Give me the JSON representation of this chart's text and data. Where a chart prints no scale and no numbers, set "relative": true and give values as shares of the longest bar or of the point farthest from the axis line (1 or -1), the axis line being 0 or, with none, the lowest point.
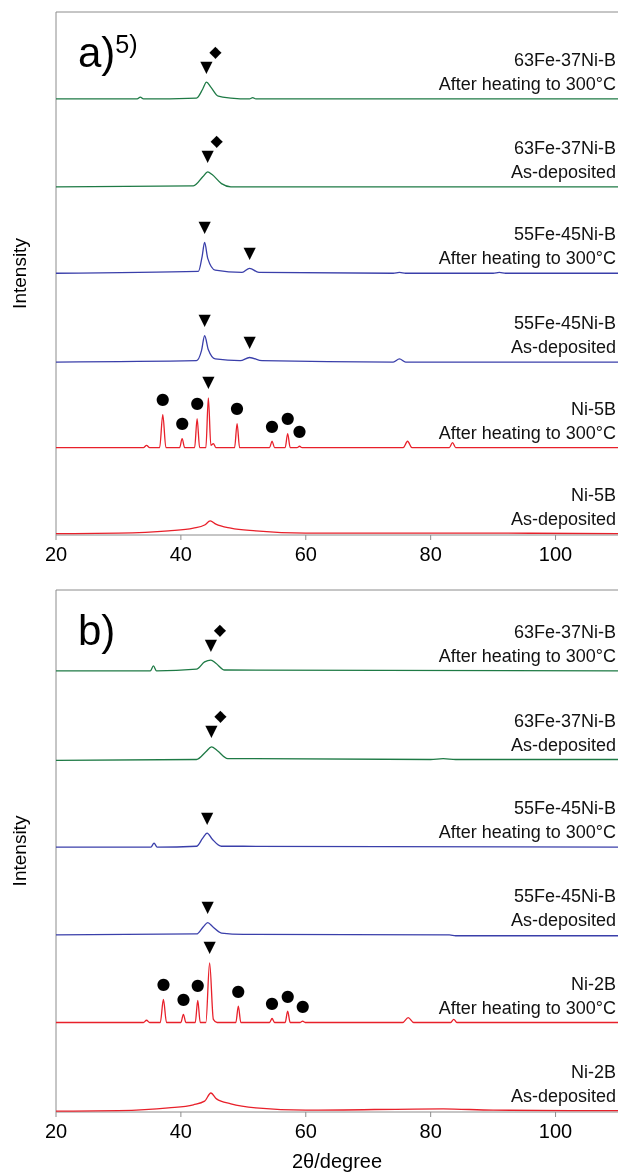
{
  "chart_data": [
    {
      "type": "line",
      "title": "a)$^{5)}$",
      "ylabel": "Intensity",
      "relative": true,
      "xlim": [
        20,
        110
      ],
      "xticks": [
        20,
        40,
        60,
        80,
        100
      ],
      "marker": "none",
      "line_style": "solid",
      "series": [
        {
          "name": "Ni-5B\nAs-deposited",
          "color": "#e8202a",
          "x": [
            20,
            30,
            38,
            42,
            43.8,
            44.7,
            45.6,
            48,
            52,
            60,
            80,
            90,
            110
          ],
          "values": [
            0.003,
            0.004,
            0.009,
            0.015,
            0.022,
            0.031,
            0.024,
            0.015,
            0.009,
            0.004,
            0.004,
            0.004,
            0.003
          ]
        },
        {
          "name": "Ni-5B\nAfter heating to 300°C",
          "color": "#e8202a",
          "x": [
            20,
            34,
            34.5,
            35,
            36.6,
            37.1,
            37.6,
            39.8,
            40.2,
            40.6,
            42.2,
            42.6,
            43.0,
            44.0,
            44.4,
            44.8,
            45.2,
            45.6,
            48.6,
            49.0,
            49.4,
            54.2,
            54.6,
            55.0,
            56.7,
            57.1,
            57.5,
            58.6,
            59.0,
            59.4,
            75.6,
            76.3,
            77.0,
            83.0,
            83.5,
            84.0,
            110
          ],
          "values": [
            0.193,
            0.193,
            0.198,
            0.193,
            0.193,
            0.266,
            0.193,
            0.193,
            0.213,
            0.193,
            0.193,
            0.257,
            0.193,
            0.193,
            0.303,
            0.198,
            0.202,
            0.193,
            0.193,
            0.246,
            0.193,
            0.193,
            0.207,
            0.193,
            0.193,
            0.224,
            0.193,
            0.193,
            0.196,
            0.193,
            0.193,
            0.207,
            0.193,
            0.193,
            0.204,
            0.193,
            0.193
          ]
        },
        {
          "name": "55Fe-45Ni-B\nAs-deposited",
          "color": "#3a3faa",
          "x": [
            20,
            42.5,
            43.3,
            43.8,
            44.4,
            45.5,
            49.5,
            51,
            53,
            74,
            75,
            76,
            110
          ],
          "values": [
            0.382,
            0.385,
            0.407,
            0.44,
            0.409,
            0.389,
            0.385,
            0.392,
            0.385,
            0.382,
            0.389,
            0.382,
            0.382
          ]
        },
        {
          "name": "55Fe-45Ni-B\nAfter heating to 300°C",
          "color": "#3a3faa",
          "x": [
            20,
            42.8,
            43.4,
            43.8,
            44.3,
            45.5,
            49.8,
            51,
            52.5,
            74,
            75,
            76,
            90,
            91,
            92,
            110
          ],
          "values": [
            0.578,
            0.582,
            0.615,
            0.646,
            0.611,
            0.585,
            0.58,
            0.589,
            0.58,
            0.578,
            0.58,
            0.578,
            0.578,
            0.58,
            0.578,
            0.578
          ]
        },
        {
          "name": "63Fe-37Ni-B\nAs-deposited",
          "color": "#1e7a45",
          "x": [
            20,
            42,
            43.5,
            44.3,
            45,
            46.5,
            48,
            110
          ],
          "values": [
            0.769,
            0.771,
            0.791,
            0.802,
            0.796,
            0.776,
            0.769,
            0.769
          ]
        },
        {
          "name": "63Fe-37Ni-B\nAfter heating to 300°C",
          "color": "#1e7a45",
          "x": [
            20,
            33,
            33.5,
            34,
            42.5,
            43.5,
            44.1,
            44.8,
            46,
            48,
            51,
            51.5,
            52,
            110
          ],
          "values": [
            0.963,
            0.963,
            0.967,
            0.963,
            0.965,
            0.985,
            1,
            0.989,
            0.969,
            0.965,
            0.963,
            0.966,
            0.963,
            0.963
          ]
        }
      ],
      "annotations": [
        {
          "text": "▼",
          "x": 44.1,
          "y": 1
        },
        {
          "text": "◆",
          "x": 44.1,
          "y": 1
        },
        {
          "text": "▼",
          "x": 44.3,
          "y": 0.802
        },
        {
          "text": "◆",
          "x": 44.3,
          "y": 0.802
        },
        {
          "text": "▼",
          "x": 43.8,
          "y": 0.646
        },
        {
          "text": "▼",
          "x": 51,
          "y": 0.589
        },
        {
          "text": "▼",
          "x": 43.8,
          "y": 0.44
        },
        {
          "text": "▼",
          "x": 51,
          "y": 0.392
        },
        {
          "text": "▼",
          "x": 44.4,
          "y": 0.303
        },
        {
          "text": "●",
          "x": 37.1,
          "y": 0.266
        },
        {
          "text": "●",
          "x": 40.2,
          "y": 0.213
        },
        {
          "text": "●",
          "x": 42.6,
          "y": 0.257
        },
        {
          "text": "●",
          "x": 49.0,
          "y": 0.246
        },
        {
          "text": "●",
          "x": 54.6,
          "y": 0.207
        },
        {
          "text": "●",
          "x": 57.1,
          "y": 0.224
        },
        {
          "text": "●",
          "x": 59.0,
          "y": 0.196
        }
      ]
    },
    {
      "type": "line",
      "title": "b)",
      "ylabel": "Intensity",
      "xlabel": "2θ/degree",
      "relative": true,
      "xlim": [
        20,
        110
      ],
      "xticks": [
        20,
        40,
        60,
        80,
        100
      ],
      "marker": "none",
      "line_style": "solid",
      "series": [
        {
          "name": "Ni-2B\nAs-deposited",
          "color": "#e8202a",
          "x": [
            20,
            30,
            38,
            42,
            43.8,
            44.8,
            45.7,
            48,
            52,
            60,
            82,
            90,
            110
          ],
          "values": [
            0.002,
            0.003,
            0.009,
            0.016,
            0.024,
            0.042,
            0.029,
            0.018,
            0.009,
            0.004,
            0.007,
            0.004,
            0.003
          ]
        },
        {
          "name": "Ni-2B\nAfter heating to 300°C",
          "color": "#e8202a",
          "x": [
            20,
            34,
            34.5,
            35,
            36.7,
            37.2,
            37.7,
            40.0,
            40.4,
            40.8,
            42.3,
            42.7,
            43.1,
            44.0,
            44.6,
            45.2,
            45.8,
            48.8,
            49.2,
            49.6,
            54.2,
            54.6,
            55.0,
            56.7,
            57.1,
            57.5,
            59.1,
            59.5,
            59.9,
            75.5,
            76.4,
            77.3,
            83.2,
            83.7,
            84.2,
            110
          ],
          "values": [
            0.198,
            0.198,
            0.203,
            0.198,
            0.198,
            0.249,
            0.198,
            0.198,
            0.216,
            0.198,
            0.198,
            0.247,
            0.198,
            0.198,
            0.33,
            0.205,
            0.198,
            0.198,
            0.234,
            0.198,
            0.198,
            0.207,
            0.198,
            0.198,
            0.223,
            0.198,
            0.198,
            0.201,
            0.198,
            0.198,
            0.209,
            0.198,
            0.198,
            0.205,
            0.198,
            0.198
          ]
        },
        {
          "name": "55Fe-45Ni-B\nAs-deposited",
          "color": "#3a3faa",
          "x": [
            20,
            42.5,
            43.6,
            44.3,
            45.1,
            46.5,
            50,
            83,
            84,
            110
          ],
          "values": [
            0.392,
            0.394,
            0.41,
            0.419,
            0.41,
            0.396,
            0.393,
            0.392,
            0.39,
            0.39
          ]
        },
        {
          "name": "55Fe-45Ni-B\nAfter heating to 300°C",
          "color": "#3a3faa",
          "x": [
            20,
            35.2,
            35.7,
            36.2,
            42.5,
            43.5,
            44.2,
            45,
            46.5,
            50,
            110
          ],
          "values": [
            0.586,
            0.586,
            0.595,
            0.586,
            0.588,
            0.606,
            0.617,
            0.604,
            0.588,
            0.588,
            0.586
          ]
        },
        {
          "name": "63Fe-37Ni-B\nAs-deposited",
          "color": "#1e7a45",
          "x": [
            20,
            42.5,
            44,
            44.9,
            45.8,
            47.5,
            80,
            82,
            84,
            110
          ],
          "values": [
            0.778,
            0.78,
            0.797,
            0.808,
            0.8,
            0.782,
            0.78,
            0.782,
            0.78,
            0.78
          ]
        },
        {
          "name": "63Fe-37Ni-B\nAfter heating to 300°C",
          "color": "#1e7a45",
          "x": [
            20,
            35.1,
            35.6,
            36.1,
            42.5,
            43.8,
            44.8,
            45.6,
            47,
            110
          ],
          "values": [
            0.976,
            0.976,
            0.987,
            0.976,
            0.98,
            0.996,
            1,
            0.993,
            0.978,
            0.976
          ]
        }
      ],
      "annotations": [
        {
          "text": "▼",
          "x": 44.8,
          "y": 1
        },
        {
          "text": "◆",
          "x": 44.8,
          "y": 1
        },
        {
          "text": "▼",
          "x": 44.9,
          "y": 0.808
        },
        {
          "text": "◆",
          "x": 44.9,
          "y": 0.808
        },
        {
          "text": "▼",
          "x": 44.2,
          "y": 0.617
        },
        {
          "text": "▼",
          "x": 44.3,
          "y": 0.419
        },
        {
          "text": "▼",
          "x": 44.6,
          "y": 0.33
        },
        {
          "text": "●",
          "x": 37.2,
          "y": 0.249
        },
        {
          "text": "●",
          "x": 40.4,
          "y": 0.216
        },
        {
          "text": "●",
          "x": 42.7,
          "y": 0.247
        },
        {
          "text": "●",
          "x": 49.2,
          "y": 0.234
        },
        {
          "text": "●",
          "x": 54.6,
          "y": 0.207
        },
        {
          "text": "●",
          "x": 57.1,
          "y": 0.223
        },
        {
          "text": "●",
          "x": 59.5,
          "y": 0.201
        }
      ]
    }
  ]
}
